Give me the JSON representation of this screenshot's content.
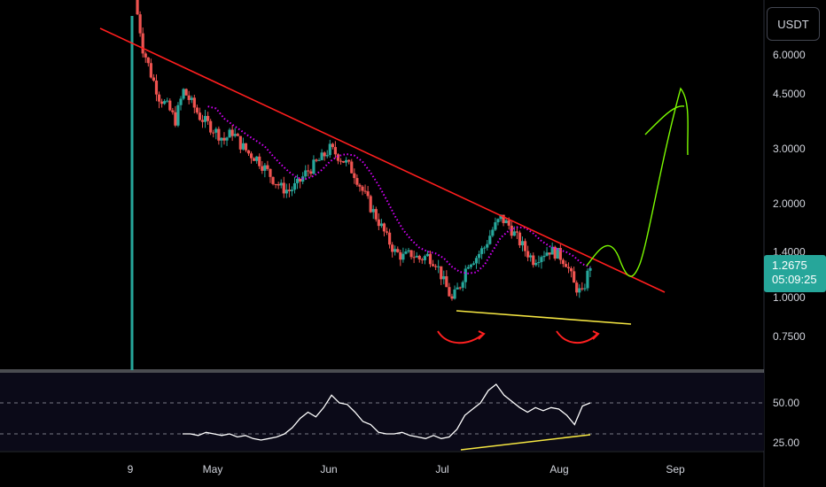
{
  "symbol_quote": "USDT",
  "price_badge": {
    "price": "1.2675",
    "countdown": "05:09:25",
    "color": "#26a69a"
  },
  "colors": {
    "up": "#26a69a",
    "down": "#ef5350",
    "ma": "#d500f9",
    "trendline": "#ff1e1e",
    "support": "#f5e642",
    "projection": "#7cfc00",
    "rsi": "#ffffff",
    "arrow": "#ff2020"
  },
  "chart_data": [
    {
      "type": "candlestick",
      "scale": "log",
      "y_ticks": [
        "6.0000",
        "4.5000",
        "3.0000",
        "2.0000",
        "1.4000",
        "1.0000",
        "0.7500"
      ],
      "x_ticks": [
        "9",
        "May",
        "Jun",
        "Jul",
        "Aug",
        "Sep"
      ],
      "close_path": [
        9.0,
        6.3,
        5.2,
        4.4,
        4.1,
        3.7,
        4.6,
        4.2,
        3.8,
        3.6,
        3.4,
        3.2,
        3.4,
        3.1,
        2.9,
        2.8,
        2.6,
        2.4,
        2.25,
        2.2,
        2.3,
        2.5,
        2.65,
        2.8,
        3.0,
        2.85,
        2.7,
        2.5,
        2.2,
        1.95,
        1.75,
        1.55,
        1.4,
        1.35,
        1.38,
        1.33,
        1.36,
        1.3,
        1.12,
        0.98,
        1.1,
        1.3,
        1.35,
        1.45,
        1.65,
        1.8,
        1.7,
        1.55,
        1.42,
        1.32,
        1.38,
        1.42,
        1.38,
        1.3,
        1.1,
        1.02,
        1.27
      ],
      "ma_label": "moving average (magenta dotted)",
      "annotations": {
        "descending_trendline": true,
        "support_line": true,
        "projection_curve": true,
        "double_bottom_arrows": 2
      }
    },
    {
      "type": "line",
      "name_hidden": "RSI",
      "y_ticks": [
        "50.00",
        "25.00"
      ],
      "bands": [
        30,
        50
      ],
      "values": [
        30,
        30,
        29,
        31,
        30,
        29,
        30,
        28,
        29,
        27,
        26,
        27,
        28,
        30,
        34,
        40,
        44,
        41,
        47,
        55,
        50,
        49,
        44,
        38,
        36,
        31,
        30,
        30,
        31,
        29,
        28,
        27,
        29,
        27,
        28,
        33,
        42,
        46,
        50,
        58,
        62,
        55,
        51,
        47,
        44,
        47,
        45,
        47,
        46,
        42,
        36,
        48,
        50
      ]
    }
  ]
}
